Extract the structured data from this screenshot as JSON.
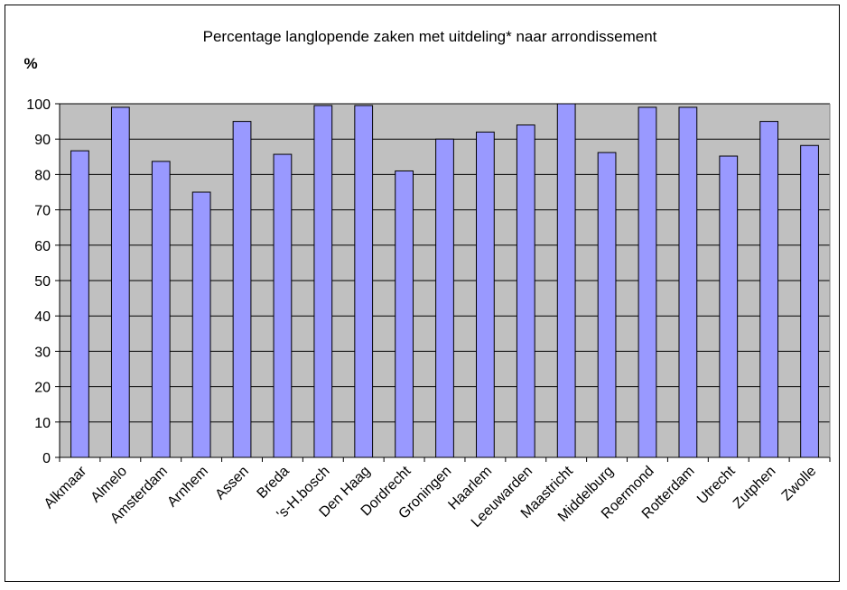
{
  "chart_data": {
    "type": "bar",
    "title": "Percentage langlopende zaken met uitdeling* naar arrondissement",
    "ylabel": "%",
    "xlabel": "",
    "ylim": [
      0,
      100
    ],
    "yticks": [
      0,
      10,
      20,
      30,
      40,
      50,
      60,
      70,
      80,
      90,
      100
    ],
    "grid": true,
    "categories": [
      "Alkmaar",
      "Almelo",
      "Amsterdam",
      "Arnhem",
      "Assen",
      "Breda",
      "'s-H.bosch",
      "Den Haag",
      "Dordrecht",
      "Groningen",
      "Haarlem",
      "Leeuwarden",
      "Maastricht",
      "Middelburg",
      "Roermond",
      "Rotterdam",
      "Utrecht",
      "Zutphen",
      "Zwolle"
    ],
    "values": [
      86.7,
      99,
      83.7,
      75,
      95,
      85.7,
      99.5,
      99.5,
      81,
      90,
      92,
      94,
      100,
      86.2,
      99,
      99,
      85.2,
      95,
      88.2
    ],
    "colors": {
      "bar_fill": "#9999ff",
      "bar_stroke": "#000000",
      "plot_bg": "#c0c0c0",
      "gridline": "#000000"
    }
  }
}
